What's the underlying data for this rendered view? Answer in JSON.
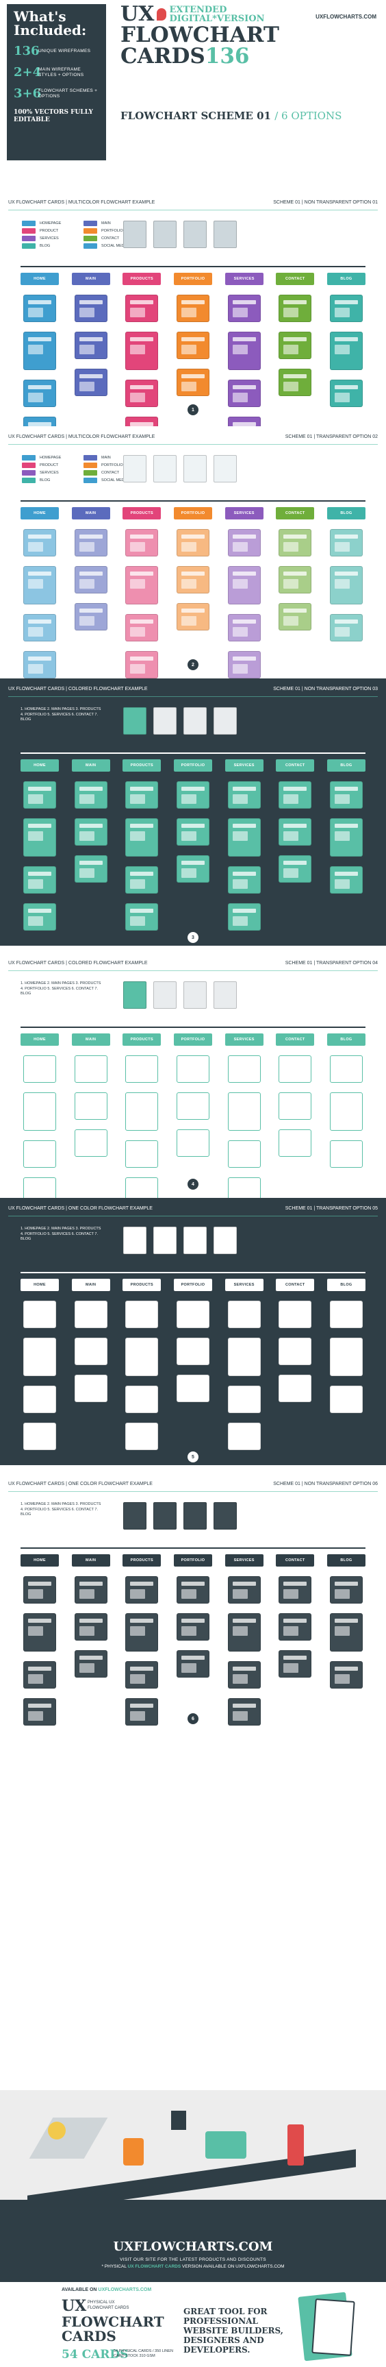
{
  "header": {
    "included_title": "What's Included:",
    "items": [
      {
        "num": "136",
        "desc": "UNIQUE WIREFRAMES"
      },
      {
        "num": "2+4",
        "desc": "MAIN WIREFRAME STYLES + OPTIONS"
      },
      {
        "num": "3+6",
        "desc": "FLOWCHART SCHEMES + OPTIONS"
      }
    ],
    "footnote": "100% VECTORS FULLY EDITABLE",
    "logo_ux": "UX",
    "logo_ext": "EXTENDED DIGITAL*VERSION",
    "logo_main": "FLOWCHART CARDS",
    "logo_num": "136",
    "site": "UXFLOWCHARTS.COM",
    "scheme_title": "FLOWCHART SCHEME 01",
    "scheme_options": "/ 6 OPTIONS"
  },
  "pages": [
    "HOME",
    "MAIN",
    "PRODUCTS",
    "PORTFOLIO",
    "SERVICES",
    "CONTACT",
    "BLOG"
  ],
  "legend": [
    "HOMEPAGE",
    "MAIN",
    "PRODUCT",
    "PORTFOLIO",
    "SERVICES",
    "CONTACT",
    "BLOG",
    "SOCIAL MEDIA"
  ],
  "sections": [
    {
      "left": "UX FLOWCHART CARDS | MULTICOLOR FLOWCHART EXAMPLE",
      "right": "SCHEME 01 | NON TRANSPARENT OPTION 01",
      "num": "1"
    },
    {
      "left": "UX FLOWCHART CARDS | MULTICOLOR FLOWCHART EXAMPLE",
      "right": "SCHEME 01 | TRANSPARENT OPTION 02",
      "num": "2"
    },
    {
      "left": "UX FLOWCHART CARDS | COLORED FLOWCHART EXAMPLE",
      "right": "SCHEME 01 | NON TRANSPARENT OPTION 03",
      "num": "3"
    },
    {
      "left": "UX FLOWCHART CARDS | COLORED FLOWCHART EXAMPLE",
      "right": "SCHEME 01 | TRANSPARENT OPTION 04",
      "num": "4"
    },
    {
      "left": "UX FLOWCHART CARDS | ONE COLOR FLOWCHART EXAMPLE",
      "right": "SCHEME 01 | TRANSPARENT OPTION 05",
      "num": "5"
    },
    {
      "left": "UX FLOWCHART CARDS | ONE COLOR FLOWCHART EXAMPLE",
      "right": "SCHEME 01 | NON TRANSPARENT OPTION 06",
      "num": "6"
    }
  ],
  "description": "1. HOMEPAGE 2. MAIN PAGES 3. PRODUCTS 4. PORTFOLIO 5. SERVICES 6. CONTACT 7. BLOG",
  "colors": {
    "dark": "#2f3e46",
    "teal": "#59bfa6",
    "multi": [
      "#3f9ecf",
      "#5b6bbd",
      "#e2457a",
      "#f28a2e",
      "#8c5bbd",
      "#6fae3b",
      "#3fb3a8"
    ],
    "red": "#e04b4b"
  },
  "footer": {
    "site": "UXFLOWCHARTS.COM",
    "visit": "VISIT OUR SITE FOR THE LATEST PRODUCTS AND DISCOUNTS",
    "physical_pre": "* PHYSICAL",
    "physical_bold": "UX FLOWCHART CARDS",
    "physical_post": "VERSION AVAILABLE ON UXFLOWCHARTS.COM"
  },
  "promo": {
    "available": "AVAILABLE ON",
    "available_site": "UXFLOWCHARTS.COM",
    "ux": "UX",
    "physical": "PHYSICAL UX FLOWCHART CARDS",
    "title": "FLOWCHART CARDS",
    "cards": "54 CARDS",
    "details": "54 PHYSICAL CARDS / 350 LINEN CARD STOCK 310 GSM",
    "great": "GREAT TOOL FOR PROFESSIONAL WEBSITE BUILDERS, DESIGNERS AND DEVELOPERS."
  }
}
